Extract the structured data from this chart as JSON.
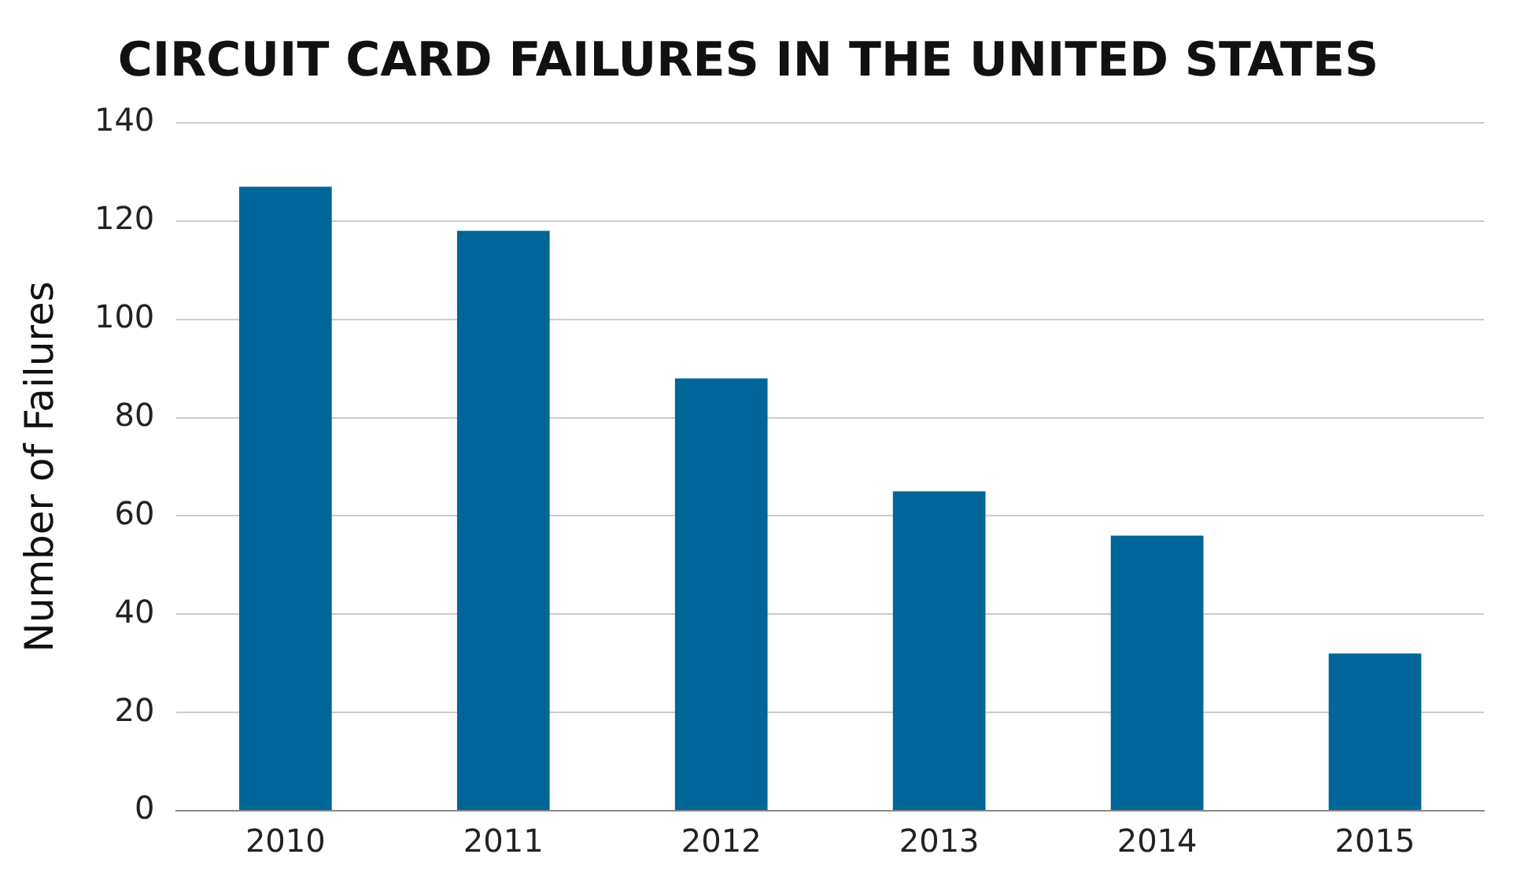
{
  "chart_data": {
    "type": "bar",
    "title": "CIRCUIT CARD FAILURES IN THE UNITED STATES",
    "ylabel": "Number of Failures",
    "categories": [
      "2010",
      "2011",
      "2012",
      "2013",
      "2014",
      "2015"
    ],
    "values": [
      127,
      118,
      88,
      65,
      56,
      32
    ],
    "color": "#006699",
    "ylim": [
      0,
      140
    ],
    "yticks": [
      0,
      20,
      40,
      60,
      80,
      100,
      120,
      140
    ],
    "grid": "y"
  }
}
